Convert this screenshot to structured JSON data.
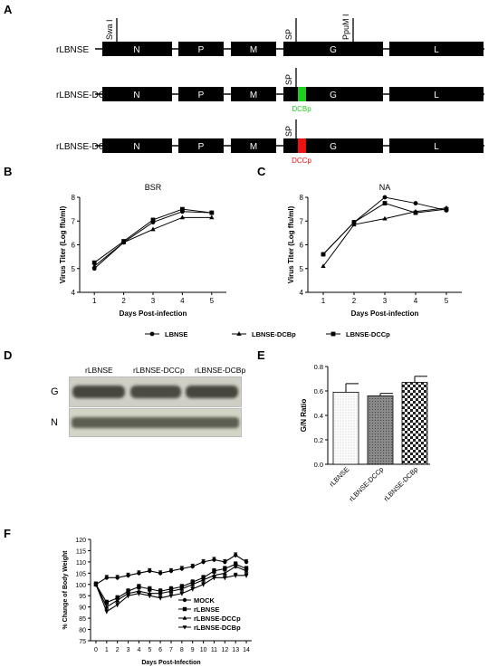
{
  "panels": {
    "A": "A",
    "B": "B",
    "C": "C",
    "D": "D",
    "E": "E",
    "F": "F"
  },
  "panelA": {
    "constructs": [
      "rLBNSE",
      "rLBNSE-DCBp",
      "rLBNSE-DCCp"
    ],
    "genes": [
      "N",
      "P",
      "M",
      "G",
      "L"
    ],
    "sites": {
      "swa": "Swa I",
      "sp": "SP",
      "ppum": "PpuM I"
    },
    "inserts": [
      {
        "label": "DCBp",
        "color": "#22cc22"
      },
      {
        "label": "DCCp",
        "color": "#ee1111"
      }
    ]
  },
  "legendBC": [
    "LBNSE",
    "LBNSE-DCBp",
    "LBNSE-DCCp"
  ],
  "panelD": {
    "lanes": [
      "rLBNSE",
      "rLBNSE-DCCp",
      "rLBNSE-DCBp"
    ],
    "rows": [
      "G",
      "N"
    ]
  },
  "chart_data": [
    {
      "type": "line",
      "title": "BSR",
      "xlabel": "Days Post-infection",
      "ylabel": "Virus Titer (Log ffu/ml)",
      "x": [
        1,
        2,
        3,
        4,
        5
      ],
      "ylim": [
        4,
        8
      ],
      "series": [
        {
          "name": "LBNSE",
          "values": [
            5.0,
            6.1,
            6.95,
            7.4,
            7.35
          ],
          "marker": "circle"
        },
        {
          "name": "LBNSE-DCBp",
          "values": [
            5.1,
            6.1,
            6.65,
            7.15,
            7.15
          ],
          "marker": "triangle"
        },
        {
          "name": "LBNSE-DCCp",
          "values": [
            5.25,
            6.15,
            7.05,
            7.5,
            7.35
          ],
          "marker": "square"
        }
      ]
    },
    {
      "type": "line",
      "title": "NA",
      "xlabel": "Days Post-infection",
      "ylabel": "Virus Titer (Log ffu/ml)",
      "x": [
        1,
        2,
        3,
        4,
        5
      ],
      "ylim": [
        4,
        8
      ],
      "series": [
        {
          "name": "LBNSE",
          "values": [
            5.6,
            6.95,
            8.0,
            7.75,
            7.45
          ],
          "marker": "circle"
        },
        {
          "name": "LBNSE-DCBp",
          "values": [
            5.1,
            6.85,
            7.1,
            7.4,
            7.55
          ],
          "marker": "triangle"
        },
        {
          "name": "LBNSE-DCCp",
          "values": [
            5.6,
            6.95,
            7.75,
            7.35,
            7.5
          ],
          "marker": "square"
        }
      ]
    },
    {
      "type": "bar",
      "ylabel": "G/N Ratio",
      "categories": [
        "rLBNSE",
        "rLBNSE-DCCp",
        "rLBNSE-DCBp"
      ],
      "values": [
        0.59,
        0.56,
        0.67
      ],
      "errors": [
        0.07,
        0.02,
        0.05
      ],
      "ylim": [
        0,
        0.8
      ],
      "yticks": [
        "0.0",
        "0.2",
        "0.4",
        "0.6",
        "0.8"
      ]
    },
    {
      "type": "line",
      "xlabel": "Days Post-Infection",
      "ylabel": "% Change of Body Weight",
      "x": [
        0,
        1,
        2,
        3,
        4,
        5,
        6,
        7,
        8,
        9,
        10,
        11,
        12,
        13,
        14
      ],
      "ylim": [
        75,
        120
      ],
      "series": [
        {
          "name": "MOCK",
          "values": [
            100,
            103,
            103,
            104,
            105,
            106,
            105,
            106,
            107,
            108,
            110,
            111,
            110,
            113,
            110
          ],
          "marker": "circle"
        },
        {
          "name": "rLBNSE",
          "values": [
            100,
            92,
            94,
            97,
            99,
            98,
            97,
            98,
            99,
            101,
            103,
            106,
            107,
            109,
            107
          ],
          "marker": "square"
        },
        {
          "name": "rLBNSE-DCCp",
          "values": [
            100,
            90,
            93,
            96,
            97,
            96,
            96,
            97,
            98,
            100,
            102,
            104,
            105,
            108,
            106
          ],
          "marker": "triangle"
        },
        {
          "name": "rLBNSE-DCBp",
          "values": [
            100,
            88,
            91,
            95,
            96,
            95,
            94,
            95,
            96,
            98,
            100,
            103,
            103,
            104,
            104
          ],
          "marker": "triangle-down"
        }
      ]
    }
  ]
}
